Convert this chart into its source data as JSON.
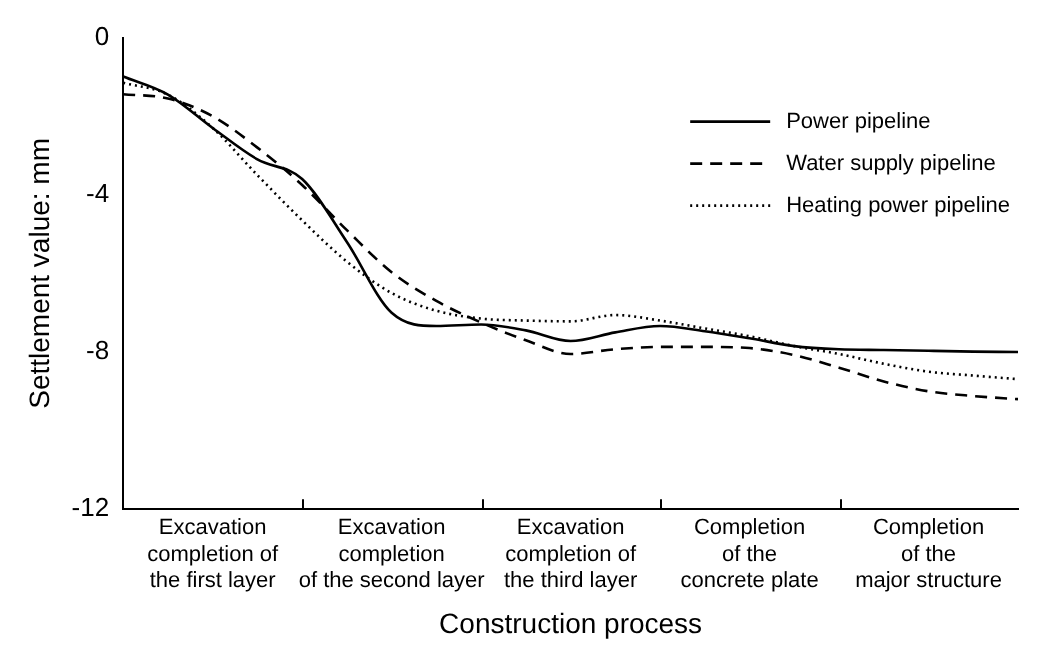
{
  "chart_data": {
    "type": "line",
    "xlabel": "Construction process",
    "ylabel": "Settlement value: mm",
    "categories": [
      null,
      null,
      "Excavation\ncompletion of\nthe first layer",
      null,
      null,
      null,
      "Excavation\ncompletion of the second layer",
      null,
      null,
      null,
      "Excavation\ncompletion of\nthe third layer",
      null,
      null,
      null,
      "Completion\nof the\nconcrete plate",
      null,
      null,
      null,
      "Completion\nof the\nmajor structure",
      null,
      null
    ],
    "ylim": [
      -12,
      0
    ],
    "yticks": [
      0,
      -4,
      -8,
      -12
    ],
    "grid": false,
    "legend": "top right",
    "marker": "none",
    "series": [
      {
        "name": "Power pipeline",
        "color": "#000000",
        "line_style": "solid",
        "values": [
          -0.99,
          -1.45,
          -2.3,
          -3.1,
          -3.6,
          -5.2,
          -7.0,
          -7.34,
          -7.3,
          -7.45,
          -7.72,
          -7.5,
          -7.34,
          -7.47,
          -7.65,
          -7.85,
          -7.93,
          -7.95,
          -7.97,
          -7.99,
          -8.0
        ]
      },
      {
        "name": "Water supply pipeline",
        "color": "#000000",
        "line_style": "dashed",
        "values": [
          -1.44,
          -1.55,
          -2.0,
          -2.8,
          -3.75,
          -4.9,
          -5.97,
          -6.7,
          -7.25,
          -7.7,
          -8.05,
          -7.93,
          -7.87,
          -7.87,
          -7.9,
          -8.08,
          -8.4,
          -8.75,
          -9.0,
          -9.12,
          -9.2
        ]
      },
      {
        "name": "Heating power pipeline",
        "color": "#000000",
        "line_style": "dotted",
        "values": [
          -1.15,
          -1.45,
          -2.3,
          -3.5,
          -4.65,
          -5.7,
          -6.5,
          -6.95,
          -7.15,
          -7.2,
          -7.22,
          -7.06,
          -7.2,
          -7.4,
          -7.6,
          -7.85,
          -8.05,
          -8.3,
          -8.5,
          -8.6,
          -8.69
        ]
      }
    ]
  }
}
